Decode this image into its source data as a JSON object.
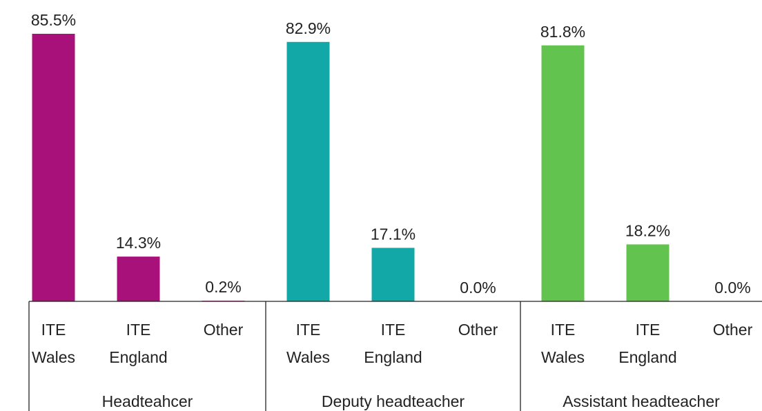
{
  "chart_data": {
    "type": "bar",
    "groups": [
      {
        "name": "Headteahcer",
        "color": "#a8117a",
        "categories": [
          "ITE Wales",
          "ITE England",
          "Other"
        ],
        "values": [
          85.5,
          14.3,
          0.2
        ],
        "value_labels": [
          "85.5%",
          "14.3%",
          "0.2%"
        ]
      },
      {
        "name": "Deputy headteacher",
        "color": "#12a8a8",
        "categories": [
          "ITE Wales",
          "ITE England",
          "Other"
        ],
        "values": [
          82.9,
          17.1,
          0.0
        ],
        "value_labels": [
          "82.9%",
          "17.1%",
          "0.0%"
        ]
      },
      {
        "name": "Assistant headteacher",
        "color": "#63c34f",
        "categories": [
          "ITE Wales",
          "ITE England",
          "Other"
        ],
        "values": [
          81.8,
          18.2,
          0.0
        ],
        "value_labels": [
          "81.8%",
          "18.2%",
          "0.0%"
        ]
      }
    ]
  }
}
